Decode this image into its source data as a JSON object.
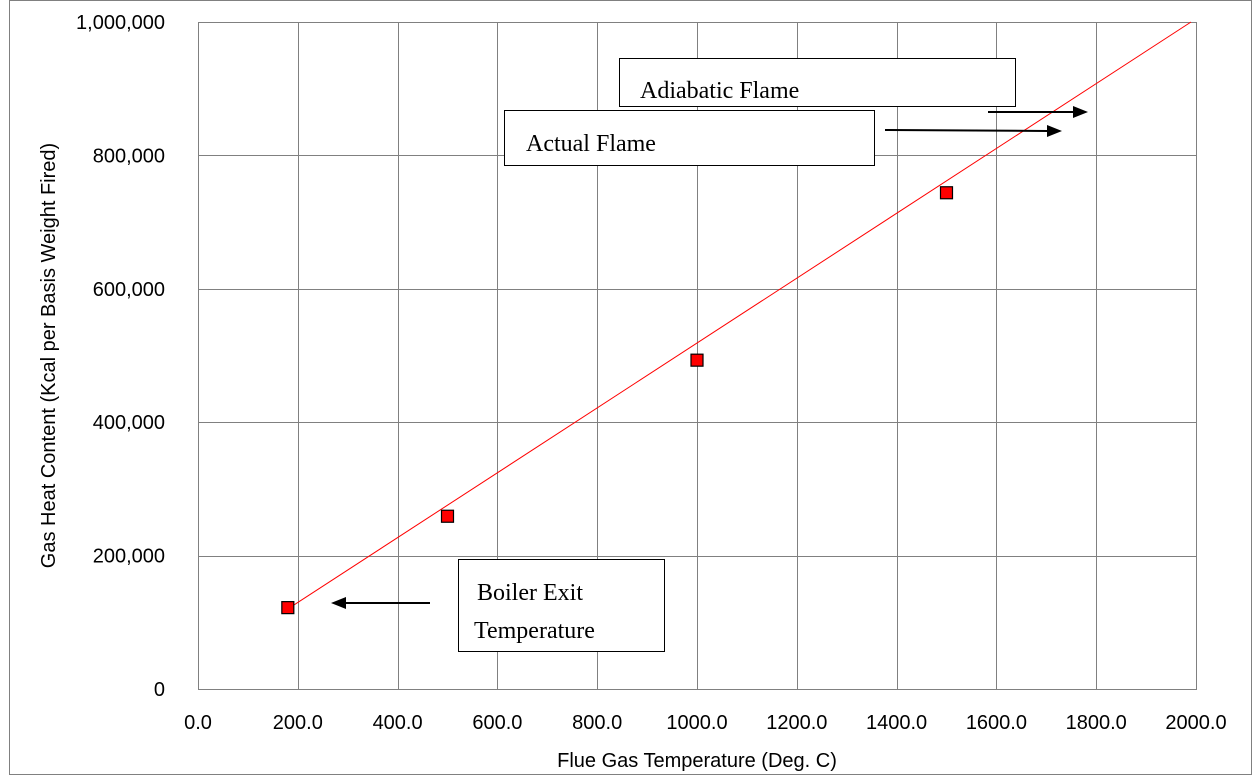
{
  "chart_data": {
    "type": "scatter",
    "title": "",
    "xlabel": "Flue Gas Temperature (Deg. C)",
    "ylabel": "Gas Heat Content (Kcal per Basis Weight Fired)",
    "xlim": [
      0,
      2000
    ],
    "ylim": [
      0,
      1000000
    ],
    "x_ticks": [
      0,
      200,
      400,
      600,
      800,
      1000,
      1200,
      1400,
      1600,
      1800,
      2000
    ],
    "x_tick_labels": [
      "0.0",
      "200.0",
      "400.0",
      "600.0",
      "800.0",
      "1000.0",
      "1200.0",
      "1400.0",
      "1600.0",
      "1800.0",
      "2000.0"
    ],
    "y_ticks": [
      0,
      200000,
      400000,
      600000,
      800000,
      1000000
    ],
    "y_tick_labels": [
      "0",
      "200,000",
      "400,000",
      "600,000",
      "800,000",
      "1,000,000"
    ],
    "grid": true,
    "legend": "none",
    "points": {
      "x": [
        180,
        500,
        1000,
        1500
      ],
      "y": [
        122000,
        259000,
        493000,
        744000
      ],
      "color": "#ff0000",
      "marker": "square"
    },
    "trendline": {
      "x": [
        180,
        1990
      ],
      "y": [
        120000,
        1000000
      ],
      "color": "#ff0000"
    },
    "annotations": [
      {
        "text": "Adiabatic Flame"
      },
      {
        "text": "Actual Flame"
      },
      {
        "text_lines": [
          "Boiler Exit",
          "Temperature"
        ]
      }
    ]
  }
}
